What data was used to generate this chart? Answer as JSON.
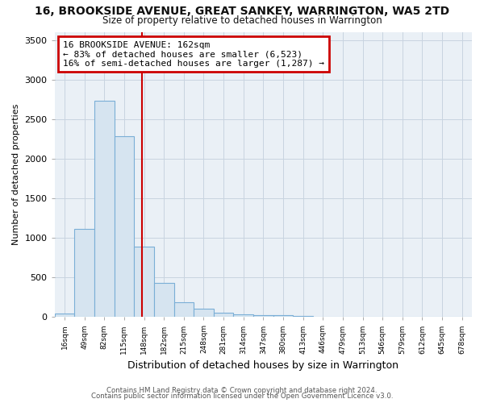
{
  "title_line1": "16, BROOKSIDE AVENUE, GREAT SANKEY, WARRINGTON, WA5 2TD",
  "title_line2": "Size of property relative to detached houses in Warrington",
  "xlabel": "Distribution of detached houses by size in Warrington",
  "ylabel": "Number of detached properties",
  "bin_labels": [
    "16sqm",
    "49sqm",
    "82sqm",
    "115sqm",
    "148sqm",
    "182sqm",
    "215sqm",
    "248sqm",
    "281sqm",
    "314sqm",
    "347sqm",
    "380sqm",
    "413sqm",
    "446sqm",
    "479sqm",
    "513sqm",
    "546sqm",
    "579sqm",
    "612sqm",
    "645sqm",
    "678sqm"
  ],
  "bar_heights": [
    45,
    1110,
    2730,
    2290,
    890,
    430,
    185,
    100,
    55,
    35,
    25,
    20,
    15,
    0,
    0,
    0,
    0,
    0,
    0,
    0,
    0
  ],
  "bar_color": "#d6e4f0",
  "bar_edge_color": "#7aaed6",
  "annotation_title": "16 BROOKSIDE AVENUE: 162sqm",
  "annotation_line2": "← 83% of detached houses are smaller (6,523)",
  "annotation_line3": "16% of semi-detached houses are larger (1,287) →",
  "annotation_box_color": "#ffffff",
  "annotation_box_edge": "#cc0000",
  "red_line_color": "#cc0000",
  "grid_color": "#c8d4e0",
  "ylim": [
    0,
    3600
  ],
  "yticks": [
    0,
    500,
    1000,
    1500,
    2000,
    2500,
    3000,
    3500
  ],
  "footer_line1": "Contains HM Land Registry data © Crown copyright and database right 2024.",
  "footer_line2": "Contains public sector information licensed under the Open Government Licence v3.0.",
  "background_color": "#ffffff",
  "plot_bg_color": "#eaf0f6"
}
